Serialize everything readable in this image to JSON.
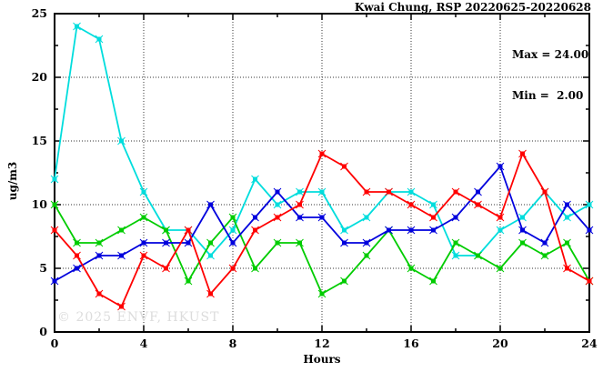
{
  "title": "Kwai Chung, RSP 20220625-20220628",
  "annotation": {
    "max_label": "Max = 24.00",
    "min_label": "Min =  2.00"
  },
  "watermark": "© 2025  ENVF, HKUST",
  "chart_data": {
    "type": "line",
    "title": "Kwai Chung, RSP 20220625-20220628",
    "xlabel": "Hours",
    "ylabel": "ug/m3",
    "xlim": [
      0,
      24
    ],
    "ylim": [
      0,
      25
    ],
    "x_tick_values": [
      0,
      4,
      8,
      12,
      16,
      20,
      24
    ],
    "x_tick_labels": [
      "0",
      "4",
      "8",
      "12",
      "16",
      "20",
      "24"
    ],
    "x_minor_ticks": [
      2,
      6,
      10,
      14,
      18,
      22
    ],
    "y_tick_values": [
      0,
      5,
      10,
      15,
      20,
      25
    ],
    "y_tick_labels": [
      "0",
      "5",
      "10",
      "15",
      "20",
      "25"
    ],
    "y_minor_ticks": [
      2.5,
      7.5,
      12.5,
      17.5,
      22.5
    ],
    "grid": "dotted-at-major-ticks",
    "legend_position": "none",
    "x": [
      0,
      1,
      2,
      3,
      4,
      5,
      6,
      7,
      8,
      9,
      10,
      11,
      12,
      13,
      14,
      15,
      16,
      17,
      18,
      19,
      20,
      21,
      22,
      23,
      24
    ],
    "series": [
      {
        "name": "series-cyan",
        "color": "#00dddd",
        "values": [
          12,
          24,
          23,
          15,
          11,
          8,
          8,
          6,
          8,
          12,
          10,
          11,
          11,
          8,
          9,
          11,
          11,
          10,
          6,
          6,
          8,
          9,
          11,
          9,
          10
        ]
      },
      {
        "name": "series-green",
        "color": "#00cc00",
        "values": [
          10,
          7,
          7,
          8,
          9,
          8,
          4,
          7,
          9,
          5,
          7,
          7,
          3,
          4,
          6,
          8,
          5,
          4,
          7,
          6,
          5,
          7,
          6,
          7,
          4
        ]
      },
      {
        "name": "series-blue",
        "color": "#0000dd",
        "values": [
          4,
          5,
          6,
          6,
          7,
          7,
          7,
          10,
          7,
          9,
          11,
          9,
          9,
          7,
          7,
          8,
          8,
          8,
          9,
          11,
          13,
          8,
          7,
          10,
          8
        ]
      },
      {
        "name": "series-red",
        "color": "#ff0000",
        "values": [
          8,
          6,
          3,
          2,
          6,
          5,
          8,
          3,
          5,
          8,
          9,
          10,
          14,
          13,
          11,
          11,
          10,
          9,
          11,
          10,
          9,
          14,
          11,
          5,
          4
        ]
      }
    ],
    "stats": {
      "max": "24.00",
      "min": "2.00"
    }
  }
}
